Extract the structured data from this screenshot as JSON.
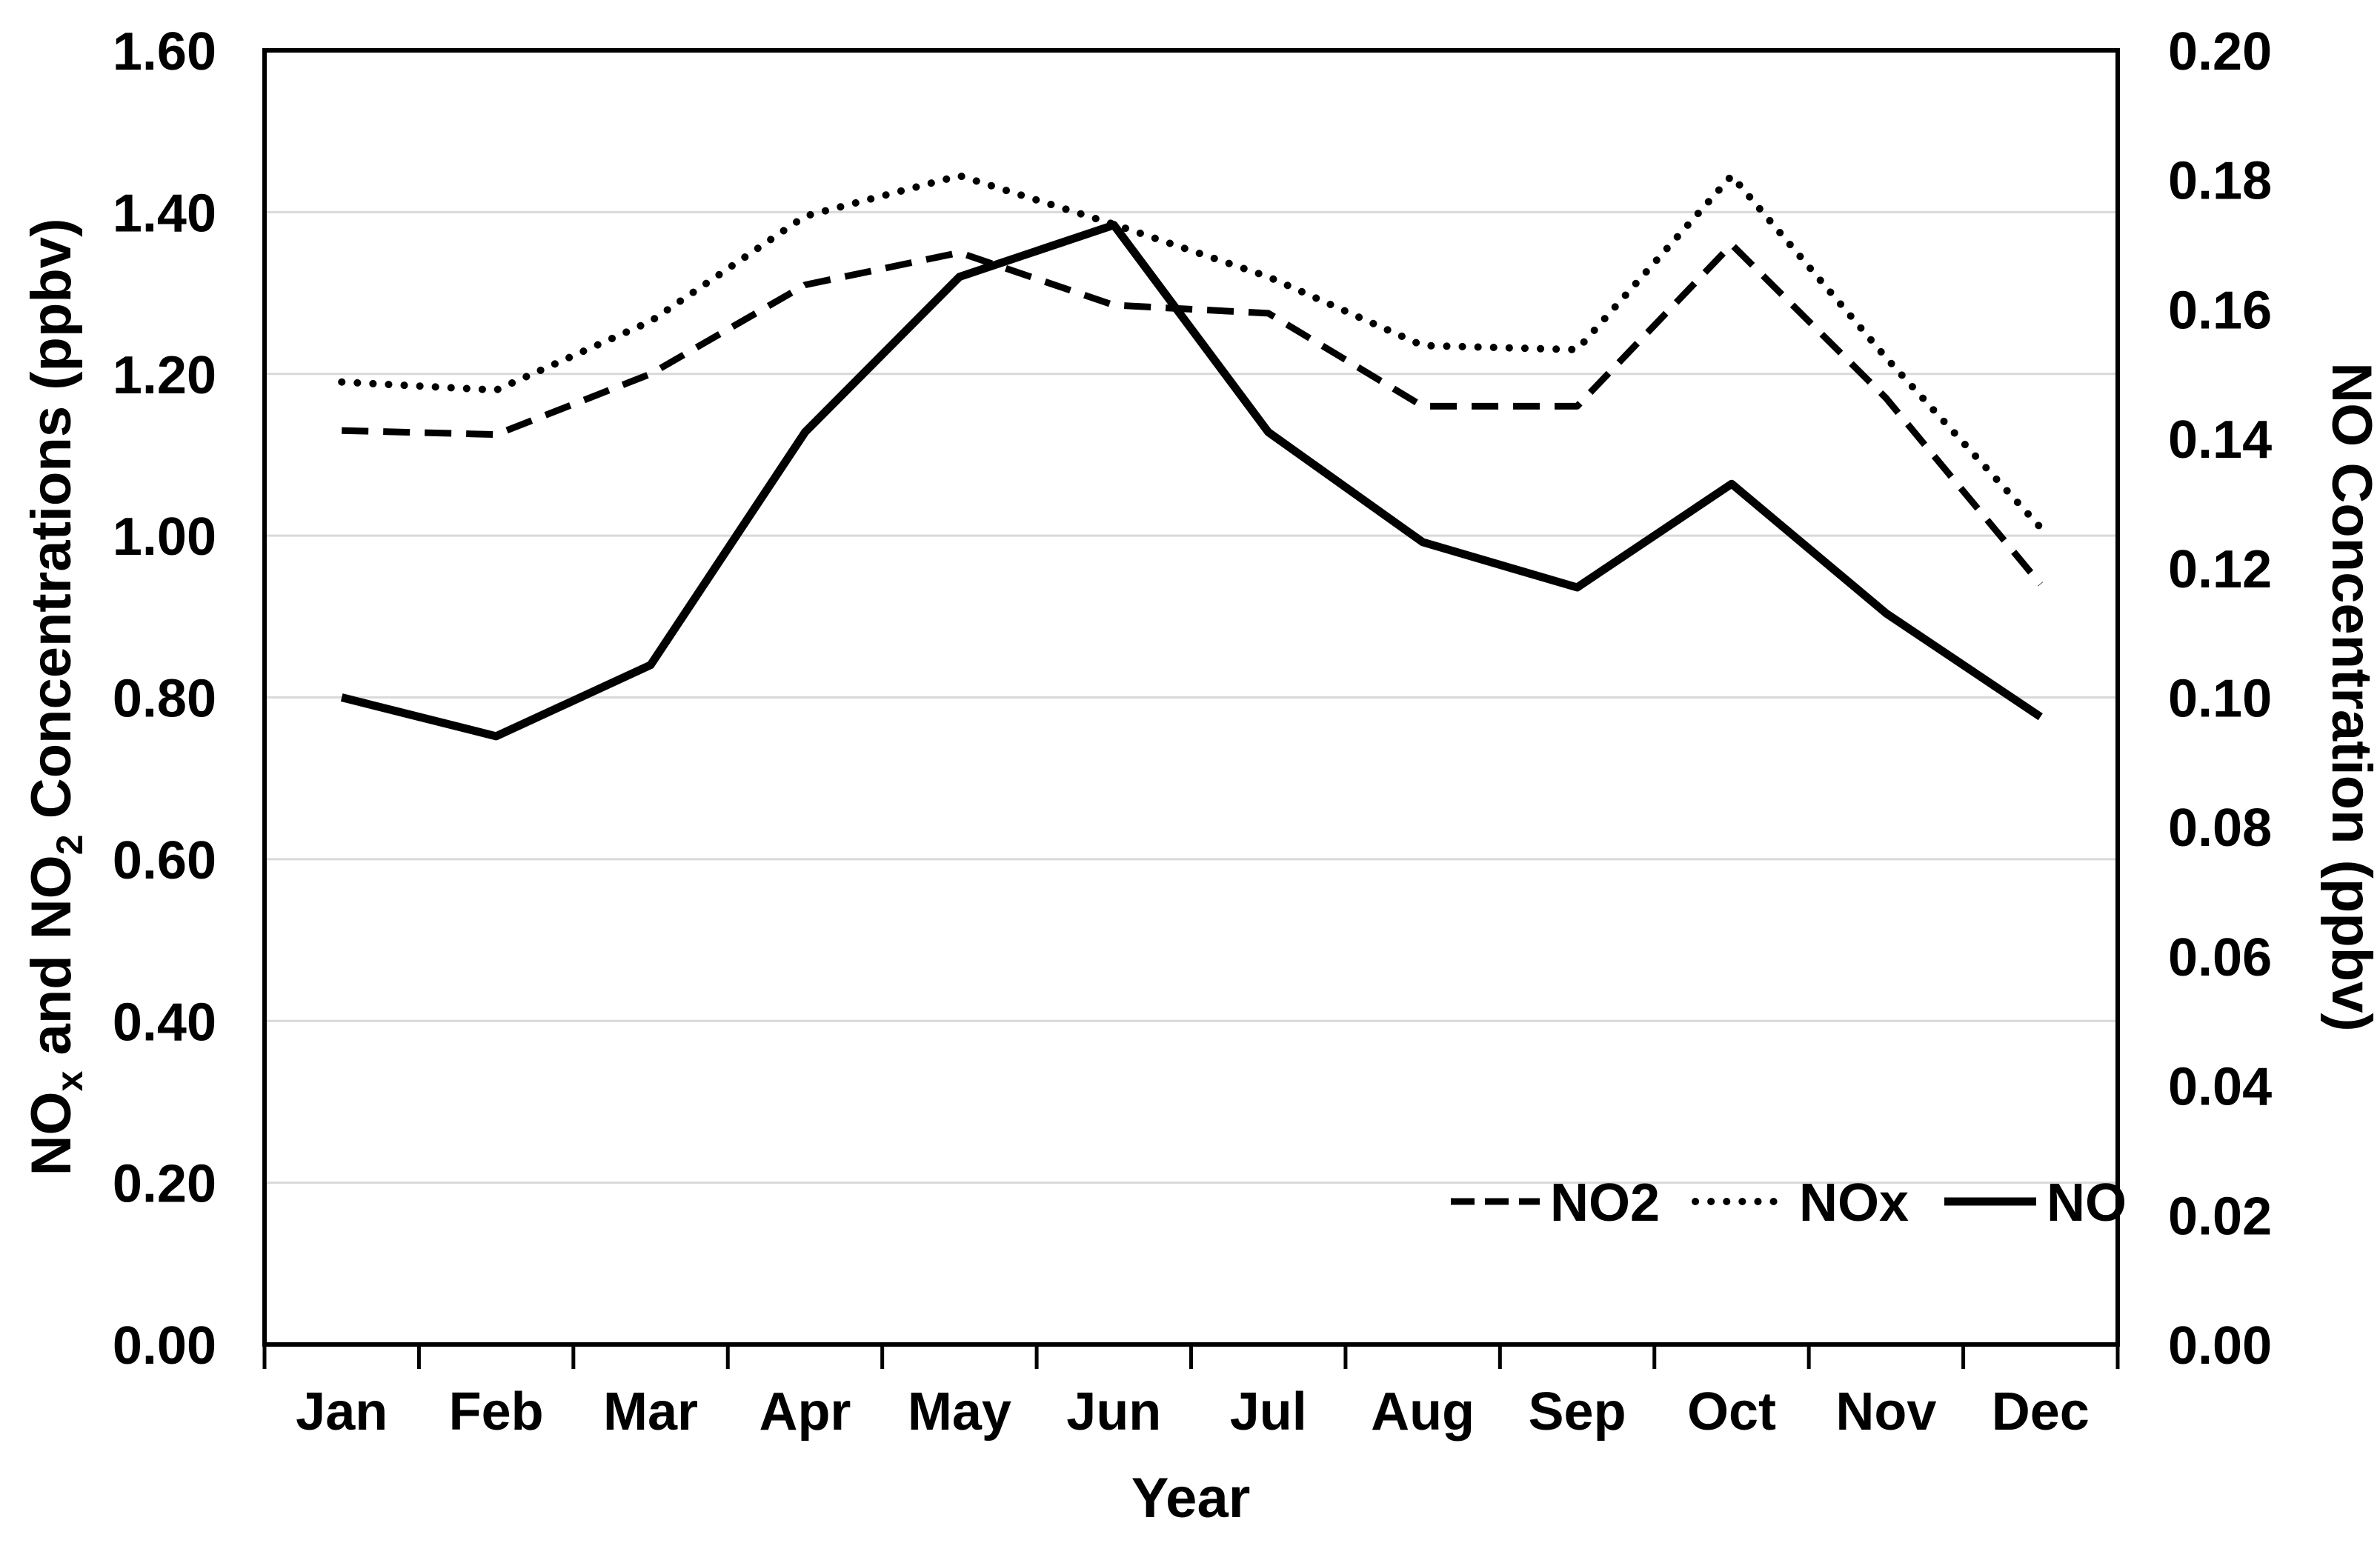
{
  "chart_data": {
    "type": "line",
    "title": "",
    "categories": [
      "Jan",
      "Feb",
      "Mar",
      "Apr",
      "May",
      "Jun",
      "Jul",
      "Aug",
      "Sep",
      "Oct",
      "Nov",
      "Dec"
    ],
    "series": [
      {
        "name": "NO2",
        "line_style": "dashed",
        "axis": "left",
        "values": [
          1.13,
          1.125,
          1.2,
          1.31,
          1.35,
          1.285,
          1.275,
          1.16,
          1.16,
          1.36,
          1.17,
          0.94
        ]
      },
      {
        "name": "NOx",
        "line_style": "dotted",
        "axis": "left",
        "values": [
          1.19,
          1.18,
          1.265,
          1.395,
          1.445,
          1.385,
          1.32,
          1.235,
          1.23,
          1.445,
          1.22,
          1.01
        ]
      },
      {
        "name": "NO",
        "line_style": "solid",
        "axis": "right",
        "values": [
          0.1,
          0.094,
          0.105,
          0.141,
          0.165,
          0.173,
          0.141,
          0.124,
          0.117,
          0.133,
          0.113,
          0.097
        ]
      }
    ],
    "left_axis": {
      "title": "NOx and NO2 Concentrations (ppbv)",
      "title_parts": [
        {
          "text": "NO",
          "sub": false
        },
        {
          "text": "x",
          "sub": true
        },
        {
          "text": " and NO",
          "sub": false
        },
        {
          "text": "2",
          "sub": true
        },
        {
          "text": " Concentrations (ppbv)",
          "sub": false
        }
      ],
      "min": 0.0,
      "max": 1.6,
      "step": 0.2,
      "tick_labels": [
        "0.00",
        "0.20",
        "0.40",
        "0.60",
        "0.80",
        "1.00",
        "1.20",
        "1.40",
        "1.60"
      ]
    },
    "right_axis": {
      "title": "NO Concentration (ppbv)",
      "min": 0.0,
      "max": 0.2,
      "step": 0.02,
      "tick_labels": [
        "0.00",
        "0.02",
        "0.04",
        "0.06",
        "0.08",
        "0.10",
        "0.12",
        "0.14",
        "0.16",
        "0.18",
        "0.20"
      ]
    },
    "x_axis": {
      "title": "Year",
      "tick_labels": [
        "Jan",
        "Feb",
        "Mar",
        "Apr",
        "May",
        "Jun",
        "Jul",
        "Aug",
        "Sep",
        "Oct",
        "Nov",
        "Dec"
      ]
    },
    "legend": {
      "position": "inside-bottom-right",
      "items": [
        {
          "label": "NO2",
          "line_style": "dashed"
        },
        {
          "label": "NOx",
          "line_style": "dotted"
        },
        {
          "label": "NO",
          "line_style": "solid"
        }
      ]
    },
    "grid": "horizontal",
    "colors": {
      "line": "#000000",
      "grid": "#d9d9d9",
      "background": "#ffffff",
      "text": "#000000"
    }
  }
}
